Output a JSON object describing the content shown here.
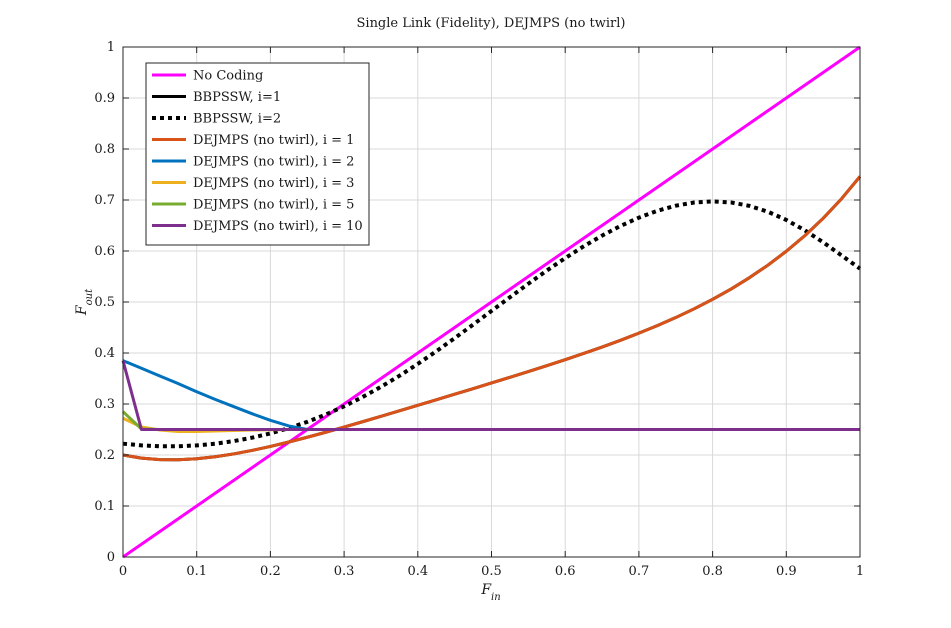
{
  "chart_data": {
    "type": "line",
    "title": "Single Link (Fidelity), DEJMPS (no twirl)",
    "xlabel_main": "F",
    "xlabel_sub": "in",
    "ylabel_main": "F",
    "ylabel_sub": "out",
    "xlim": [
      0,
      1
    ],
    "ylim": [
      0,
      1
    ],
    "xticks": [
      0,
      0.1,
      0.2,
      0.3,
      0.4,
      0.5,
      0.6,
      0.7,
      0.8,
      0.9,
      1
    ],
    "xtick_labels": [
      "0",
      "0.1",
      "0.2",
      "0.3",
      "0.4",
      "0.5",
      "0.6",
      "0.7",
      "0.8",
      "0.9",
      "1"
    ],
    "yticks": [
      0,
      0.1,
      0.2,
      0.3,
      0.4,
      0.5,
      0.6,
      0.7,
      0.8,
      0.9,
      1
    ],
    "ytick_labels": [
      "0",
      "0.1",
      "0.2",
      "0.3",
      "0.4",
      "0.5",
      "0.6",
      "0.7",
      "0.8",
      "0.9",
      "1"
    ],
    "grid": true,
    "legend_position": "top-left",
    "x": [
      0,
      0.025,
      0.05,
      0.075,
      0.1,
      0.125,
      0.15,
      0.175,
      0.2,
      0.225,
      0.25,
      0.275,
      0.3,
      0.325,
      0.35,
      0.375,
      0.4,
      0.425,
      0.45,
      0.475,
      0.5,
      0.525,
      0.55,
      0.575,
      0.6,
      0.625,
      0.65,
      0.675,
      0.7,
      0.725,
      0.75,
      0.775,
      0.8,
      0.825,
      0.85,
      0.875,
      0.9,
      0.925,
      0.95,
      0.975,
      1
    ],
    "series": [
      {
        "name": "No Coding",
        "color": "#ff00ff",
        "style": "solid",
        "values": [
          0,
          0.025,
          0.05,
          0.075,
          0.1,
          0.125,
          0.15,
          0.175,
          0.2,
          0.225,
          0.25,
          0.275,
          0.3,
          0.325,
          0.35,
          0.375,
          0.4,
          0.425,
          0.45,
          0.475,
          0.5,
          0.525,
          0.55,
          0.575,
          0.6,
          0.625,
          0.65,
          0.675,
          0.7,
          0.725,
          0.75,
          0.775,
          0.8,
          0.825,
          0.85,
          0.875,
          0.9,
          0.925,
          0.95,
          0.975,
          1
        ]
      },
      {
        "name": "BBPSSW, i=1",
        "color": "#000000",
        "style": "solid",
        "values": [
          0.2,
          0.1939,
          0.1909,
          0.1906,
          0.1926,
          0.1965,
          0.2021,
          0.2089,
          0.2168,
          0.2255,
          0.2348,
          0.2446,
          0.2548,
          0.2652,
          0.2758,
          0.2866,
          0.2974,
          0.3083,
          0.3192,
          0.3301,
          0.3412,
          0.3523,
          0.3636,
          0.3751,
          0.3869,
          0.3991,
          0.4117,
          0.4249,
          0.4389,
          0.4537,
          0.4695,
          0.4866,
          0.5052,
          0.5254,
          0.5477,
          0.5722,
          0.5995,
          0.6299,
          0.6641,
          0.7025,
          0.7461
        ]
      },
      {
        "name": "BBPSSW, i=2",
        "color": "#000000",
        "style": "dotted",
        "values": [
          0.2222,
          0.2188,
          0.2171,
          0.2171,
          0.2188,
          0.2221,
          0.2272,
          0.2339,
          0.2424,
          0.2527,
          0.265,
          0.2793,
          0.2955,
          0.3136,
          0.3336,
          0.3553,
          0.3786,
          0.4033,
          0.4291,
          0.4556,
          0.4825,
          0.5094,
          0.5359,
          0.5616,
          0.5861,
          0.6091,
          0.6302,
          0.6491,
          0.6654,
          0.6788,
          0.6888,
          0.6951,
          0.6973,
          0.6952,
          0.6885,
          0.677,
          0.6609,
          0.6407,
          0.6171,
          0.5913,
          0.5654
        ]
      },
      {
        "name": "DEJMPS (no twirl), i = 1",
        "color": "#d95319",
        "style": "solid",
        "values": [
          0.2,
          0.1939,
          0.1909,
          0.1906,
          0.1926,
          0.1965,
          0.2021,
          0.2089,
          0.2168,
          0.2255,
          0.2348,
          0.2446,
          0.2548,
          0.2652,
          0.2758,
          0.2866,
          0.2974,
          0.3083,
          0.3192,
          0.3301,
          0.3412,
          0.3523,
          0.3636,
          0.3751,
          0.3869,
          0.3991,
          0.4117,
          0.4249,
          0.4389,
          0.4537,
          0.4695,
          0.4866,
          0.5052,
          0.5254,
          0.5477,
          0.5722,
          0.5995,
          0.6299,
          0.6641,
          0.7025,
          0.7461
        ]
      },
      {
        "name": "DEJMPS (no twirl), i = 2",
        "color": "#0072bd",
        "style": "solid",
        "values": [
          0.385,
          0.37,
          0.355,
          0.34,
          0.324,
          0.309,
          0.295,
          0.281,
          0.268,
          0.257,
          0.25,
          0.25,
          0.25,
          0.25,
          0.25,
          0.25,
          0.25,
          0.25,
          0.25,
          0.25,
          0.25,
          0.25,
          0.25,
          0.25,
          0.25,
          0.25,
          0.25,
          0.25,
          0.25,
          0.25,
          0.25,
          0.25,
          0.25,
          0.25,
          0.25,
          0.25,
          0.25,
          0.25,
          0.25,
          0.25,
          0.25
        ]
      },
      {
        "name": "DEJMPS (no twirl), i = 3",
        "color": "#edb120",
        "style": "solid",
        "values": [
          0.272,
          0.255,
          0.249,
          0.246,
          0.246,
          0.247,
          0.248,
          0.249,
          0.2495,
          0.25,
          0.25,
          0.25,
          0.25,
          0.25,
          0.25,
          0.25,
          0.25,
          0.25,
          0.25,
          0.25,
          0.25,
          0.25,
          0.25,
          0.25,
          0.25,
          0.25,
          0.25,
          0.25,
          0.25,
          0.25,
          0.25,
          0.25,
          0.25,
          0.25,
          0.25,
          0.25,
          0.25,
          0.25,
          0.25,
          0.25,
          0.25
        ]
      },
      {
        "name": "DEJMPS (no twirl), i = 5",
        "color": "#77ac30",
        "style": "solid",
        "values": [
          0.285,
          0.251,
          0.25,
          0.25,
          0.25,
          0.25,
          0.25,
          0.25,
          0.25,
          0.25,
          0.25,
          0.25,
          0.25,
          0.25,
          0.25,
          0.25,
          0.25,
          0.25,
          0.25,
          0.25,
          0.25,
          0.25,
          0.25,
          0.25,
          0.25,
          0.25,
          0.25,
          0.25,
          0.25,
          0.25,
          0.25,
          0.25,
          0.25,
          0.25,
          0.25,
          0.25,
          0.25,
          0.25,
          0.25,
          0.25,
          0.25
        ]
      },
      {
        "name": "DEJMPS (no twirl), i = 10",
        "color": "#7e2f8e",
        "style": "solid",
        "values": [
          0.385,
          0.25,
          0.25,
          0.25,
          0.25,
          0.25,
          0.25,
          0.25,
          0.25,
          0.25,
          0.25,
          0.25,
          0.25,
          0.25,
          0.25,
          0.25,
          0.25,
          0.25,
          0.25,
          0.25,
          0.25,
          0.25,
          0.25,
          0.25,
          0.25,
          0.25,
          0.25,
          0.25,
          0.25,
          0.25,
          0.25,
          0.25,
          0.25,
          0.25,
          0.25,
          0.25,
          0.25,
          0.25,
          0.25,
          0.25,
          0.25
        ]
      }
    ]
  }
}
